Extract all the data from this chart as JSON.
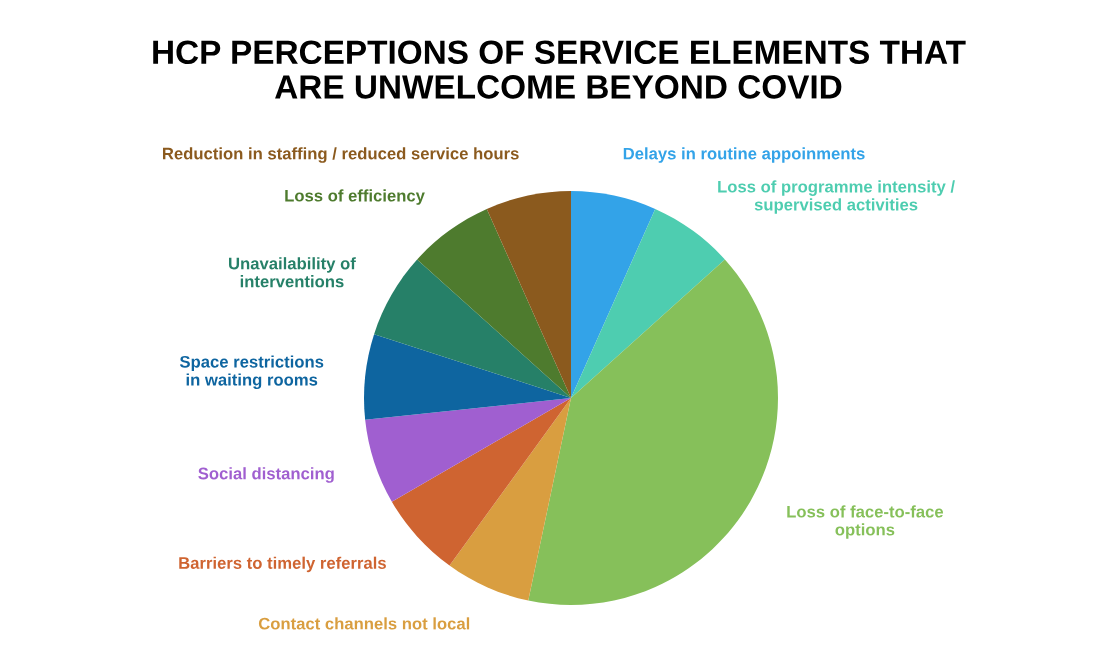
{
  "chart_data": {
    "type": "pie",
    "title": "HCP PERCEPTIONS OF SERVICE ELEMENTS THAT\nARE UNWELCOME BEYOND COVID",
    "categories": [
      "Delays in routine appoinments",
      "Loss of programme intensity /\nsupervised activities",
      "Loss of face-to-face\noptions",
      "Contact channels not local",
      "Barriers to timely referrals",
      "Social distancing",
      "Space restrictions\nin waiting rooms",
      "Unavailability of\ninterventions",
      "Loss of efficiency",
      "Reduction in staffing / reduced service hours"
    ],
    "values": [
      6.67,
      6.67,
      39.97,
      6.67,
      6.67,
      6.67,
      6.67,
      6.67,
      6.67,
      6.67
    ],
    "colors": [
      "#33a3e8",
      "#4ecdb0",
      "#86c05a",
      "#d99e40",
      "#cf6431",
      "#a05fd0",
      "#0e65a0",
      "#268068",
      "#4e7b2e",
      "#8b5a1e"
    ],
    "legend": false
  }
}
